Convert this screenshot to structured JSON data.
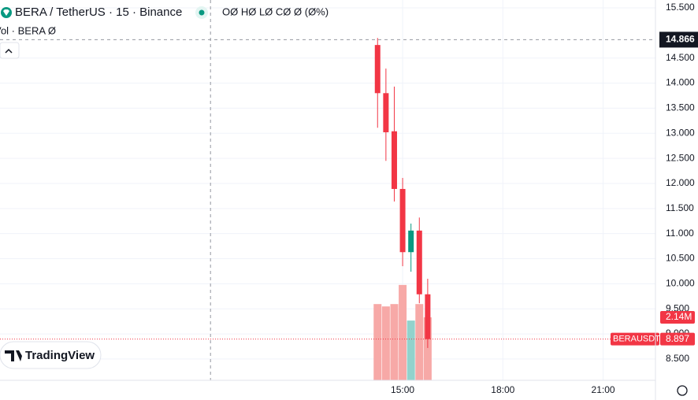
{
  "chart_data": {
    "type": "candlestick",
    "title": "BERA / TetherUS · 15 · Binance",
    "ohlc_legend": "OØ HØ LØ CØ Ø (Ø%)",
    "volume_legend": "Vol · BERA  Ø",
    "symbol_label": "BERAUSDT",
    "brand": "TradingView",
    "x": [
      855,
      870,
      885,
      900,
      915,
      930,
      945
    ],
    "open": [
      14.76,
      13.8,
      13.04,
      11.89,
      10.63,
      11.06,
      9.79
    ],
    "high": [
      14.9,
      14.29,
      13.93,
      12.11,
      11.2,
      11.32,
      10.1
    ],
    "low": [
      13.11,
      12.45,
      11.64,
      10.35,
      10.24,
      9.61,
      8.72
    ],
    "close": [
      13.8,
      13.02,
      11.89,
      10.63,
      11.06,
      9.79,
      8.897
    ],
    "volume": [
      2.59,
      2.51,
      2.59,
      3.24,
      2.03,
      2.59,
      2.14
    ],
    "volume_value_labels": [
      null,
      null,
      null,
      null,
      null,
      null,
      "2.14M"
    ],
    "up_color": "#089981",
    "down_color": "#f23645",
    "volume_up_color": "#92d2cc",
    "volume_down_color": "#f7a9a7",
    "xlim": [
      177,
      1354
    ],
    "xticks": [
      {
        "value": 900,
        "label": "15:00"
      },
      {
        "value": 1080,
        "label": "18:00"
      },
      {
        "value": 1260,
        "label": "21:00"
      }
    ],
    "ylim": [
      8.075,
      15.657
    ],
    "yticks": [
      {
        "value": 8.5,
        "label": "8.500"
      },
      {
        "value": 9,
        "label": "9.000"
      },
      {
        "value": 9.5,
        "label": "9.500"
      },
      {
        "value": 10,
        "label": "10.000"
      },
      {
        "value": 10.5,
        "label": "10.500"
      },
      {
        "value": 11,
        "label": "11.000"
      },
      {
        "value": 11.5,
        "label": "11.500"
      },
      {
        "value": 12,
        "label": "12.000"
      },
      {
        "value": 12.5,
        "label": "12.500"
      },
      {
        "value": 13,
        "label": "13.000"
      },
      {
        "value": 13.5,
        "label": "13.500"
      },
      {
        "value": 14,
        "label": "14.000"
      },
      {
        "value": 14.5,
        "label": "14.500"
      },
      {
        "value": 15.5,
        "label": "15.500"
      }
    ],
    "vol_ylim": [
      0,
      12.92
    ],
    "crosshair": {
      "time": 555,
      "price": 14.866
    },
    "grid": true
  }
}
